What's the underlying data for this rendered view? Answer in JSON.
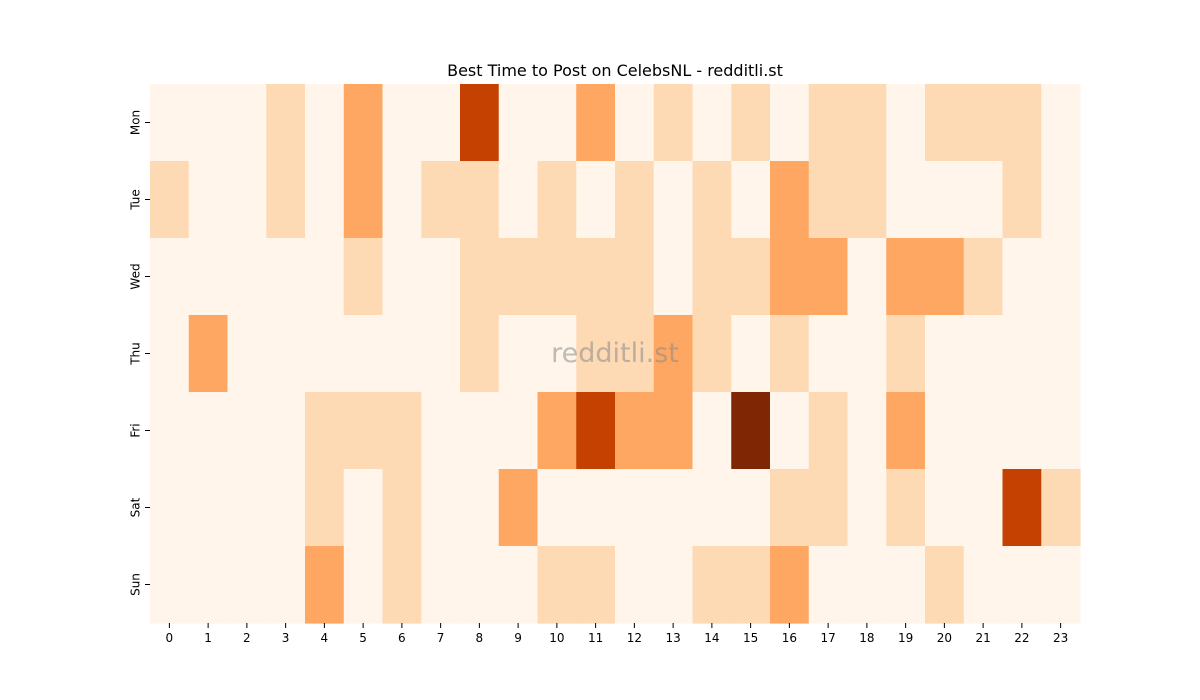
{
  "chart_data": {
    "type": "heatmap",
    "title": "Best Time to Post on CelebsNL - redditli.st",
    "watermark": "redditli.st",
    "xlabel": "",
    "ylabel": "",
    "x_categories": [
      "0",
      "1",
      "2",
      "3",
      "4",
      "5",
      "6",
      "7",
      "8",
      "9",
      "10",
      "11",
      "12",
      "13",
      "14",
      "15",
      "16",
      "17",
      "18",
      "19",
      "20",
      "21",
      "22",
      "23"
    ],
    "y_categories": [
      "Mon",
      "Tue",
      "Wed",
      "Thu",
      "Fri",
      "Sat",
      "Sun"
    ],
    "values": [
      [
        0,
        0,
        0,
        1,
        0,
        2,
        0,
        0,
        3,
        0,
        0,
        2,
        0,
        1,
        0,
        1,
        0,
        1,
        1,
        0,
        1,
        1,
        1,
        0
      ],
      [
        1,
        0,
        0,
        1,
        0,
        2,
        0,
        1,
        1,
        0,
        1,
        0,
        1,
        0,
        1,
        0,
        2,
        1,
        1,
        0,
        0,
        0,
        1,
        0
      ],
      [
        0,
        0,
        0,
        0,
        0,
        1,
        0,
        0,
        1,
        1,
        1,
        1,
        1,
        0,
        1,
        1,
        2,
        2,
        0,
        2,
        2,
        1,
        0,
        0
      ],
      [
        0,
        2,
        0,
        0,
        0,
        0,
        0,
        0,
        1,
        0,
        0,
        1,
        1,
        2,
        1,
        0,
        1,
        0,
        0,
        1,
        0,
        0,
        0,
        0
      ],
      [
        0,
        0,
        0,
        0,
        1,
        1,
        1,
        0,
        0,
        0,
        2,
        3,
        2,
        2,
        0,
        4,
        0,
        1,
        0,
        2,
        0,
        0,
        0,
        0
      ],
      [
        0,
        0,
        0,
        0,
        1,
        0,
        1,
        0,
        0,
        2,
        0,
        0,
        0,
        0,
        0,
        0,
        1,
        1,
        0,
        1,
        0,
        0,
        3,
        1
      ],
      [
        0,
        0,
        0,
        0,
        2,
        0,
        1,
        0,
        0,
        0,
        1,
        1,
        0,
        0,
        1,
        1,
        2,
        0,
        0,
        0,
        1,
        0,
        0,
        0
      ]
    ],
    "vmin": 0,
    "vmax": 4,
    "colorscale": [
      "#fff5eb",
      "#fdd9b4",
      "#fda762",
      "#c54102",
      "#7f2704"
    ],
    "colorbar": false,
    "grid": false
  }
}
